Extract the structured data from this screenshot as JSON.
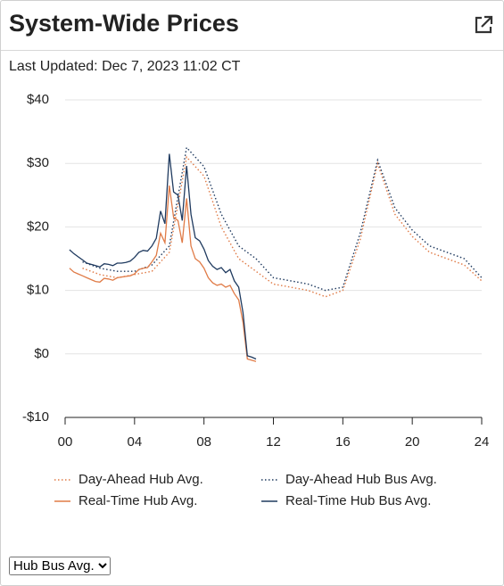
{
  "header": {
    "title": "System-Wide Prices"
  },
  "last_updated": "Last Updated: Dec 7, 2023 11:02 CT",
  "chart_data": {
    "type": "line",
    "series": [
      {
        "name": "Day-Ahead Hub Avg.",
        "color": "#e07b47",
        "dash": "dotted",
        "x": [
          1,
          2,
          3,
          4,
          5,
          6,
          7,
          8,
          9,
          10,
          11,
          12,
          13,
          14,
          15,
          16,
          17,
          18,
          19,
          20,
          21,
          22,
          23,
          24
        ],
        "values": [
          13.5,
          12.5,
          12,
          12.5,
          13,
          16,
          31,
          28,
          20,
          15,
          13,
          11,
          10.5,
          10,
          9,
          10,
          18,
          30,
          22,
          18.5,
          16,
          15,
          14,
          11.5
        ]
      },
      {
        "name": "Day-Ahead Hub Bus Avg.",
        "color": "#1f3a5f",
        "dash": "dotted",
        "x": [
          1,
          2,
          3,
          4,
          5,
          6,
          7,
          8,
          9,
          10,
          11,
          12,
          13,
          14,
          15,
          16,
          17,
          18,
          19,
          20,
          21,
          22,
          23,
          24
        ],
        "values": [
          14.5,
          13.5,
          13,
          13,
          14,
          17,
          32.5,
          29.5,
          22,
          17,
          15,
          12,
          11.5,
          11,
          10,
          10.5,
          19,
          30.5,
          23,
          19.5,
          17,
          16,
          15,
          12
        ]
      },
      {
        "name": "Real-Time Hub Avg.",
        "color": "#e07b47",
        "dash": "solid",
        "x": [
          0.25,
          0.5,
          0.75,
          1,
          1.25,
          1.5,
          1.75,
          2,
          2.25,
          2.5,
          2.75,
          3,
          3.25,
          3.5,
          3.75,
          4,
          4.25,
          4.5,
          4.75,
          5,
          5.25,
          5.5,
          5.75,
          6,
          6.25,
          6.5,
          6.75,
          7,
          7.25,
          7.5,
          7.75,
          8,
          8.25,
          8.5,
          8.75,
          9,
          9.25,
          9.5,
          9.75,
          10,
          10.25,
          10.5,
          10.75,
          11
        ],
        "values": [
          13.5,
          12.9,
          12.6,
          12.3,
          12,
          11.7,
          11.4,
          11.3,
          11.9,
          11.8,
          11.6,
          12.0,
          12.1,
          12.2,
          12.3,
          12.6,
          13.3,
          13.5,
          13.6,
          14.5,
          15.5,
          19,
          17.5,
          26.5,
          21.5,
          21,
          17.5,
          24.5,
          17,
          15,
          14.5,
          13.5,
          12,
          11.2,
          10.8,
          11,
          10.5,
          10.8,
          9.5,
          8.5,
          5,
          -0.8,
          -1,
          -1.2
        ]
      },
      {
        "name": "Real-Time Hub Bus Avg.",
        "color": "#1f3a5f",
        "dash": "solid",
        "x": [
          0.25,
          0.5,
          0.75,
          1,
          1.25,
          1.5,
          1.75,
          2,
          2.25,
          2.5,
          2.75,
          3,
          3.25,
          3.5,
          3.75,
          4,
          4.25,
          4.5,
          4.75,
          5,
          5.25,
          5.5,
          5.75,
          6,
          6.25,
          6.5,
          6.75,
          7,
          7.25,
          7.5,
          7.75,
          8,
          8.25,
          8.5,
          8.75,
          9,
          9.25,
          9.5,
          9.75,
          10,
          10.25,
          10.5,
          10.75,
          11
        ],
        "values": [
          16.4,
          15.8,
          15.3,
          14.8,
          14.3,
          14.1,
          13.9,
          13.7,
          14.2,
          14.1,
          13.9,
          14.3,
          14.3,
          14.4,
          14.6,
          15.2,
          16.0,
          16.3,
          16.2,
          17.0,
          18.2,
          22.5,
          20.5,
          31.5,
          25.5,
          25,
          21,
          29.6,
          22,
          18.3,
          17.8,
          16.5,
          14.7,
          13.8,
          13.3,
          13.6,
          12.8,
          13.3,
          11.5,
          10.5,
          6.5,
          -0.3,
          -0.5,
          -0.8
        ]
      }
    ],
    "xlim": [
      0,
      24
    ],
    "xticks": [
      {
        "value": 0,
        "label": "00"
      },
      {
        "value": 4,
        "label": "04"
      },
      {
        "value": 8,
        "label": "08"
      },
      12,
      16,
      20,
      24
    ],
    "ylim": [
      -10,
      40
    ],
    "yticks": [
      {
        "value": -10,
        "label": "-$10"
      },
      {
        "value": 0,
        "label": "$0"
      },
      {
        "value": 10,
        "label": "$10"
      },
      {
        "value": 20,
        "label": "$20"
      },
      {
        "value": 30,
        "label": "$30"
      },
      {
        "value": 40,
        "label": "$40"
      }
    ],
    "grid": true
  },
  "dropdown": {
    "selected": "Hub Bus Avg."
  }
}
